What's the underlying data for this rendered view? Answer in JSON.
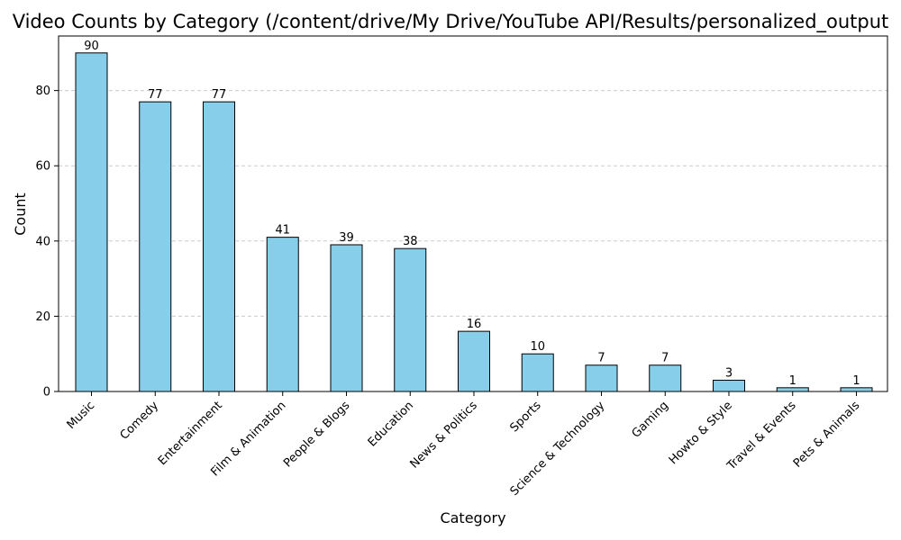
{
  "chart_data": {
    "type": "bar",
    "title": "Video Counts by Category (/content/drive/My Drive/YouTube API/Results/personalized_output",
    "xlabel": "Category",
    "ylabel": "Count",
    "categories": [
      "Music",
      "Comedy",
      "Entertainment",
      "Film & Animation",
      "People & Blogs",
      "Education",
      "News & Politics",
      "Sports",
      "Science & Technology",
      "Gaming",
      "Howto & Style",
      "Travel & Events",
      "Pets & Animals"
    ],
    "values": [
      90,
      77,
      77,
      41,
      39,
      38,
      16,
      10,
      7,
      7,
      3,
      1,
      1
    ],
    "ylim": [
      0,
      94.5
    ],
    "yticks": [
      0,
      20,
      40,
      60,
      80
    ],
    "grid": {
      "y": true,
      "style": "dashed"
    },
    "colors": {
      "bar_fill": "#87CEEB",
      "bar_stroke": "#000000",
      "grid": "#cccccc",
      "axis": "#000000"
    }
  }
}
